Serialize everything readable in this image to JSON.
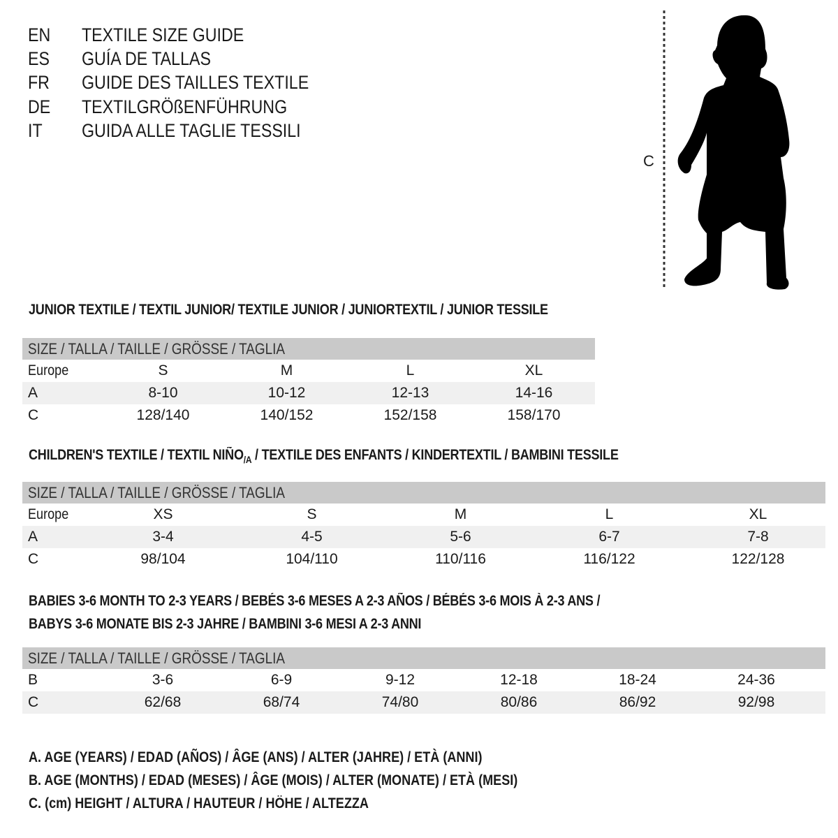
{
  "languages": [
    {
      "code": "EN",
      "title": "TEXTILE SIZE GUIDE"
    },
    {
      "code": "ES",
      "title": "GUÍA DE TALLAS"
    },
    {
      "code": "FR",
      "title": "GUIDE DES TAILLES TEXTILE"
    },
    {
      "code": "DE",
      "title": "TEXTILGRÖßENFÜHRUNG"
    },
    {
      "code": "IT",
      "title": "GUIDA ALLE TAGLIE TESSILI"
    }
  ],
  "figure": {
    "icon": "child-silhouette-icon",
    "measure_label": "C"
  },
  "size_header": "SIZE / TALLA / TAILLE / GRÖSSE / TAGLIA",
  "junior": {
    "title": "JUNIOR TEXTILE / TEXTIL JUNIOR/ TEXTILE JUNIOR / JUNIORTEXTIL / JUNIOR TESSILE",
    "rows": [
      {
        "label": "Europe",
        "values": [
          "S",
          "M",
          "L",
          "XL"
        ]
      },
      {
        "label": "A",
        "values": [
          "8-10",
          "10-12",
          "12-13",
          "14-16"
        ]
      },
      {
        "label": "C",
        "values": [
          "128/140",
          "140/152",
          "152/158",
          "158/170"
        ]
      }
    ]
  },
  "children": {
    "title_pre": "CHILDREN'S TEXTILE / TEXTIL NIÑO",
    "title_sub": "/A",
    "title_post": " / TEXTILE DES ENFANTS / KINDERTEXTIL / BAMBINI TESSILE",
    "rows": [
      {
        "label": "Europe",
        "values": [
          "XS",
          "S",
          "M",
          "L",
          "XL"
        ]
      },
      {
        "label": "A",
        "values": [
          "3-4",
          "4-5",
          "5-6",
          "6-7",
          "7-8"
        ]
      },
      {
        "label": "C",
        "values": [
          "98/104",
          "104/110",
          "110/116",
          "116/122",
          "122/128"
        ]
      }
    ]
  },
  "babies": {
    "title_line1": "BABIES 3-6 MONTH TO 2-3 YEARS / BEBÉS 3-6 MESES A 2-3 AÑOS / BÉBÉS 3-6 MOIS À 2-3 ANS /",
    "title_line2": "BABYS 3-6 MONATE BIS 2-3 JAHRE / BAMBINI 3-6 MESI A 2-3 ANNI",
    "rows": [
      {
        "label": "B",
        "values": [
          "3-6",
          "6-9",
          "9-12",
          "12-18",
          "18-24",
          "24-36"
        ]
      },
      {
        "label": "C",
        "values": [
          "62/68",
          "68/74",
          "74/80",
          "80/86",
          "86/92",
          "92/98"
        ]
      }
    ]
  },
  "legend": [
    "A. AGE (YEARS) / EDAD (AÑOS) / ÂGE (ANS) / ALTER (JAHRE) / ETÀ (ANNI)",
    "B. AGE (MONTHS) / EDAD (MESES) / ÂGE (MOIS) / ALTER (MONATE) / ETÀ (MESI)",
    "C. (cm) HEIGHT / ALTURA / HAUTEUR / HÖHE / ALTEZZA"
  ],
  "colors": {
    "header_bar": "#c9c9c9",
    "alt_row": "#f0f0f0",
    "text": "#1a1a1a"
  }
}
